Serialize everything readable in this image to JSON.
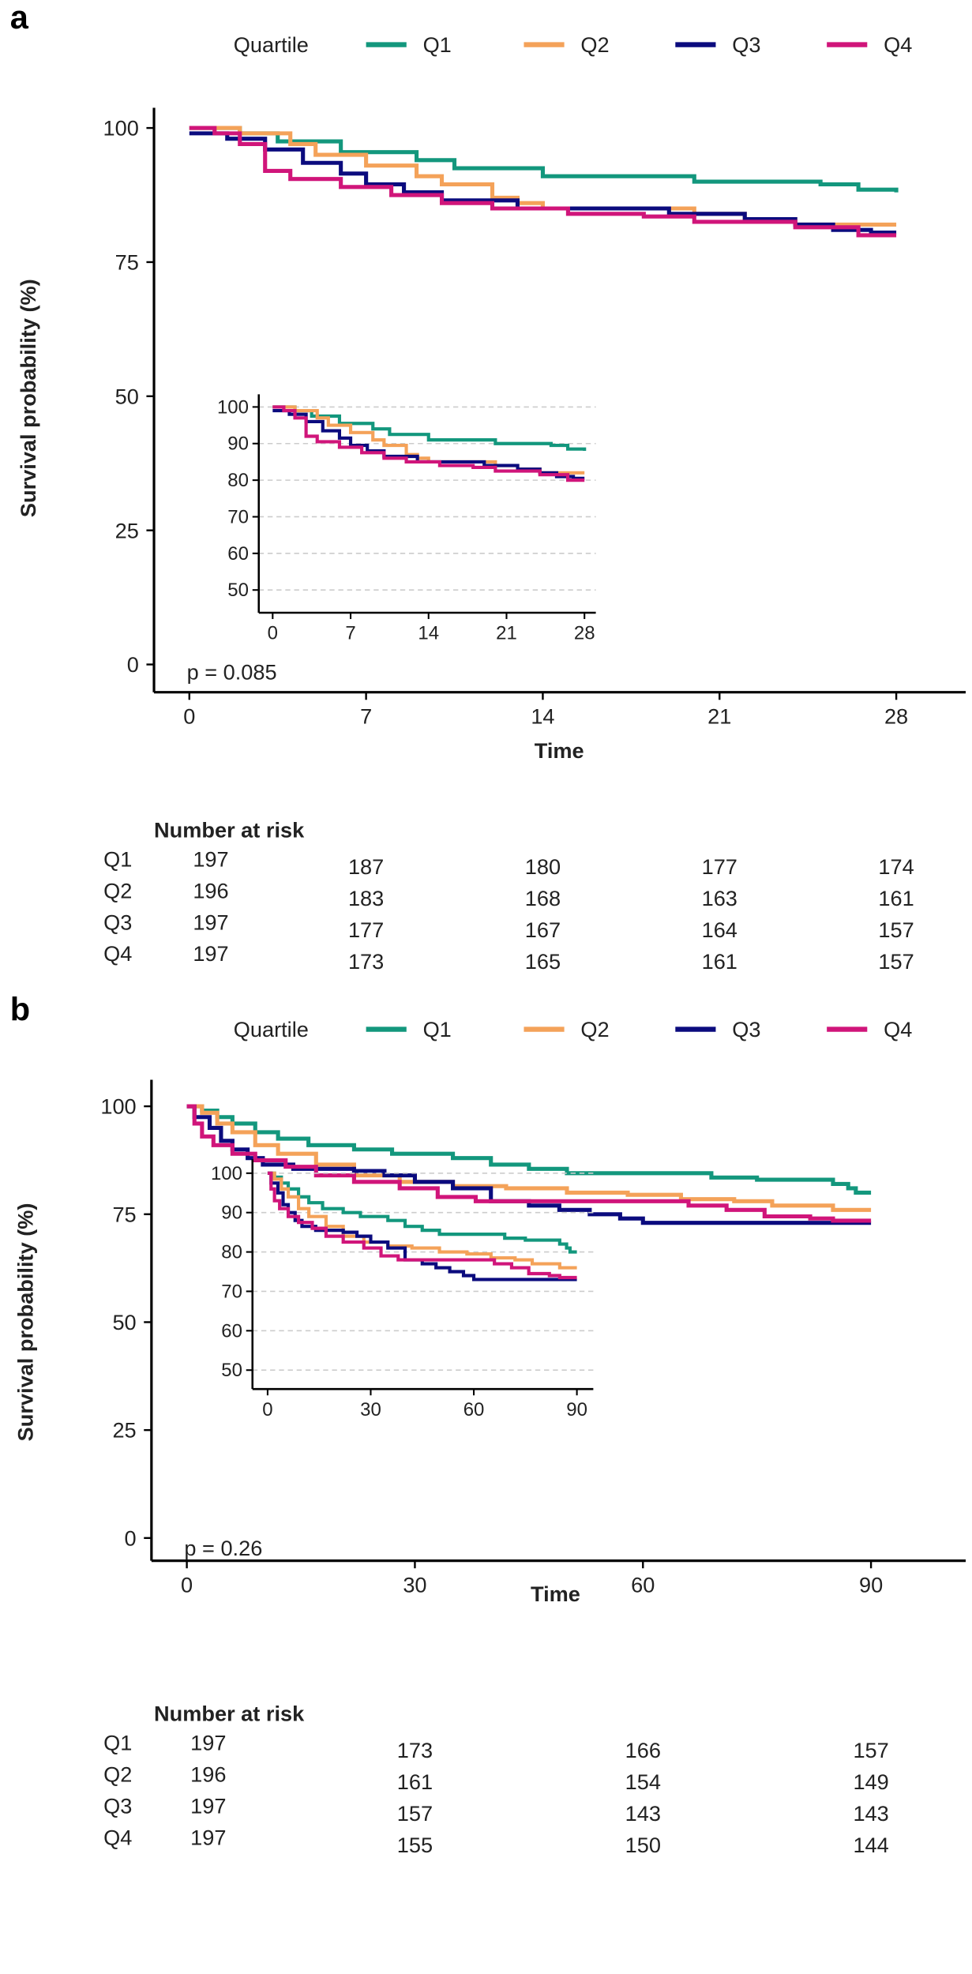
{
  "chart_data": [
    {
      "type": "line",
      "panel_label": "a",
      "legend_title": "Quartile",
      "legend_placement": "top",
      "xlabel": "Time",
      "ylabel": "Survival probability (%)",
      "xlim": [
        0,
        28
      ],
      "ylim": [
        0,
        100
      ],
      "xticks": [
        0,
        7,
        14,
        21,
        28
      ],
      "yticks": [
        0,
        25,
        50,
        75,
        100
      ],
      "p_value": "p = 0.085",
      "series": [
        {
          "name": "Q1",
          "color": "#13977d",
          "steps": [
            [
              0,
              100
            ],
            [
              2,
              99
            ],
            [
              3.5,
              97.5
            ],
            [
              6,
              95.5
            ],
            [
              9,
              94
            ],
            [
              10.5,
              92.5
            ],
            [
              14,
              91
            ],
            [
              20,
              90
            ],
            [
              25,
              89.5
            ],
            [
              26.5,
              88.5
            ],
            [
              28,
              88
            ]
          ]
        },
        {
          "name": "Q2",
          "color": "#f4a259",
          "steps": [
            [
              0,
              100
            ],
            [
              2,
              99
            ],
            [
              4,
              97
            ],
            [
              5,
              95
            ],
            [
              7,
              93
            ],
            [
              9,
              91
            ],
            [
              10,
              89.5
            ],
            [
              12,
              87
            ],
            [
              13,
              86
            ],
            [
              14,
              85
            ],
            [
              20,
              84
            ],
            [
              22,
              83
            ],
            [
              24,
              82
            ],
            [
              28,
              82
            ]
          ]
        },
        {
          "name": "Q3",
          "color": "#0b0b7e",
          "steps": [
            [
              0,
              99
            ],
            [
              1.5,
              98
            ],
            [
              3,
              96
            ],
            [
              4.5,
              93.5
            ],
            [
              6,
              91.5
            ],
            [
              7,
              89.5
            ],
            [
              8.5,
              88
            ],
            [
              10,
              86.5
            ],
            [
              13,
              85
            ],
            [
              19,
              84
            ],
            [
              22,
              83
            ],
            [
              24,
              82
            ],
            [
              25.5,
              81
            ],
            [
              27,
              80.5
            ],
            [
              28,
              80.5
            ]
          ]
        },
        {
          "name": "Q4",
          "color": "#d0157a",
          "steps": [
            [
              0,
              100
            ],
            [
              1,
              99
            ],
            [
              2,
              97
            ],
            [
              3,
              92
            ],
            [
              4,
              90.5
            ],
            [
              6,
              89
            ],
            [
              8,
              87.5
            ],
            [
              10,
              86
            ],
            [
              12,
              85
            ],
            [
              15,
              84
            ],
            [
              18,
              83.5
            ],
            [
              20,
              82.5
            ],
            [
              24,
              81.5
            ],
            [
              26.5,
              80
            ],
            [
              28,
              80
            ]
          ]
        }
      ],
      "inset": {
        "ylim": [
          50,
          100
        ],
        "yticks": [
          50,
          60,
          70,
          80,
          90,
          100
        ],
        "xticks": [
          0,
          7,
          14,
          21,
          28
        ],
        "grid": "dashed horizontal"
      },
      "risk_table": {
        "title": "Number at risk",
        "times": [
          0,
          7,
          14,
          21,
          28
        ],
        "rows": [
          {
            "label": "Q1",
            "values": [
              197,
              187,
              180,
              177,
              174
            ]
          },
          {
            "label": "Q2",
            "values": [
              196,
              183,
              168,
              163,
              161
            ]
          },
          {
            "label": "Q3",
            "values": [
              197,
              177,
              167,
              164,
              157
            ]
          },
          {
            "label": "Q4",
            "values": [
              197,
              173,
              165,
              161,
              157
            ]
          }
        ]
      }
    },
    {
      "type": "line",
      "panel_label": "b",
      "legend_title": "Quartile",
      "legend_placement": "top",
      "xlabel": "Time",
      "ylabel": "Survival probability (%)",
      "xlim": [
        0,
        90
      ],
      "ylim": [
        0,
        100
      ],
      "xticks": [
        0,
        30,
        60,
        90
      ],
      "yticks": [
        0,
        25,
        50,
        75,
        100
      ],
      "p_value": "p = 0.26",
      "series": [
        {
          "name": "Q1",
          "color": "#13977d",
          "steps": [
            [
              0,
              100
            ],
            [
              2,
              99
            ],
            [
              4,
              97.5
            ],
            [
              6,
              96
            ],
            [
              9,
              94
            ],
            [
              12,
              92.5
            ],
            [
              16,
              91
            ],
            [
              22,
              90
            ],
            [
              27,
              89
            ],
            [
              35,
              88
            ],
            [
              40,
              86.5
            ],
            [
              45,
              85.5
            ],
            [
              50,
              84.5
            ],
            [
              69,
              83.5
            ],
            [
              75,
              83
            ],
            [
              85,
              82
            ],
            [
              87,
              81
            ],
            [
              88,
              80
            ],
            [
              90,
              80
            ]
          ]
        },
        {
          "name": "Q2",
          "color": "#f4a259",
          "steps": [
            [
              0,
              100
            ],
            [
              2,
              98.5
            ],
            [
              4,
              96
            ],
            [
              6,
              94
            ],
            [
              9,
              91
            ],
            [
              12,
              89
            ],
            [
              17,
              86.5
            ],
            [
              22,
              84
            ],
            [
              28,
              82.5
            ],
            [
              35,
              81.5
            ],
            [
              42,
              81
            ],
            [
              50,
              80
            ],
            [
              58,
              79.5
            ],
            [
              65,
              78.5
            ],
            [
              72,
              78
            ],
            [
              77,
              77
            ],
            [
              85,
              76
            ],
            [
              90,
              76
            ]
          ]
        },
        {
          "name": "Q3",
          "color": "#0b0b7e",
          "steps": [
            [
              0,
              100
            ],
            [
              1,
              97.5
            ],
            [
              3,
              95
            ],
            [
              4.5,
              92
            ],
            [
              6,
              90
            ],
            [
              8,
              88
            ],
            [
              10,
              86.5
            ],
            [
              14,
              85.5
            ],
            [
              22,
              85
            ],
            [
              26,
              84
            ],
            [
              30,
              82.5
            ],
            [
              35,
              81
            ],
            [
              40,
              78
            ],
            [
              45,
              77
            ],
            [
              49,
              76
            ],
            [
              53,
              75
            ],
            [
              57,
              74
            ],
            [
              60,
              73
            ],
            [
              90,
              73
            ]
          ]
        },
        {
          "name": "Q4",
          "color": "#d0157a",
          "steps": [
            [
              0,
              100
            ],
            [
              1,
              96
            ],
            [
              2,
              93
            ],
            [
              3.5,
              91
            ],
            [
              6,
              89
            ],
            [
              9,
              87.5
            ],
            [
              13,
              86
            ],
            [
              17,
              84
            ],
            [
              22,
              82.5
            ],
            [
              28,
              81
            ],
            [
              33,
              79
            ],
            [
              38,
              78
            ],
            [
              60,
              78
            ],
            [
              66,
              77
            ],
            [
              71,
              76
            ],
            [
              76,
              74.5
            ],
            [
              82,
              74
            ],
            [
              85,
              73.5
            ],
            [
              90,
              73.5
            ]
          ]
        }
      ],
      "inset": {
        "ylim": [
          50,
          100
        ],
        "yticks": [
          50,
          60,
          70,
          80,
          90,
          100
        ],
        "xticks": [
          0,
          30,
          60,
          90
        ],
        "grid": "dashed horizontal"
      },
      "risk_table": {
        "title": "Number at risk",
        "times": [
          0,
          30,
          60,
          90
        ],
        "rows": [
          {
            "label": "Q1",
            "values": [
              197,
              173,
              166,
              157
            ]
          },
          {
            "label": "Q2",
            "values": [
              196,
              161,
              154,
              149
            ]
          },
          {
            "label": "Q3",
            "values": [
              197,
              157,
              143,
              143
            ]
          },
          {
            "label": "Q4",
            "values": [
              197,
              155,
              150,
              144
            ]
          }
        ]
      }
    }
  ]
}
